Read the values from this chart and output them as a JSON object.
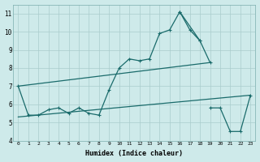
{
  "background_color": "#ceeaea",
  "grid_color": "#aacccc",
  "line_color": "#1a6b6b",
  "xlabel": "Humidex (Indice chaleur)",
  "xlim": [
    -0.5,
    23.5
  ],
  "ylim": [
    4,
    11.5
  ],
  "yticks": [
    4,
    5,
    6,
    7,
    8,
    9,
    10,
    11
  ],
  "xticks": [
    0,
    1,
    2,
    3,
    4,
    5,
    6,
    7,
    8,
    9,
    10,
    11,
    12,
    13,
    14,
    15,
    16,
    17,
    18,
    19,
    20,
    21,
    22,
    23
  ],
  "series": [
    {
      "x": [
        0,
        1,
        2,
        3,
        4,
        5,
        6,
        7,
        8,
        9,
        10,
        11,
        12,
        13,
        14,
        15,
        16,
        17,
        18
      ],
      "y": [
        7.0,
        5.4,
        5.4,
        5.7,
        5.8,
        5.5,
        5.8,
        5.5,
        5.4,
        6.8,
        8.0,
        8.5,
        8.4,
        8.5,
        9.9,
        10.1,
        11.1,
        10.1,
        9.5
      ]
    },
    {
      "x": [
        16,
        18,
        19
      ],
      "y": [
        11.1,
        9.5,
        8.3
      ]
    },
    {
      "x": [
        0,
        19
      ],
      "y": [
        7.0,
        8.3
      ]
    },
    {
      "x": [
        0,
        23
      ],
      "y": [
        5.3,
        6.5
      ]
    },
    {
      "x": [
        19,
        20,
        21,
        22,
        23
      ],
      "y": [
        5.8,
        5.8,
        4.5,
        4.5,
        6.5
      ]
    }
  ]
}
